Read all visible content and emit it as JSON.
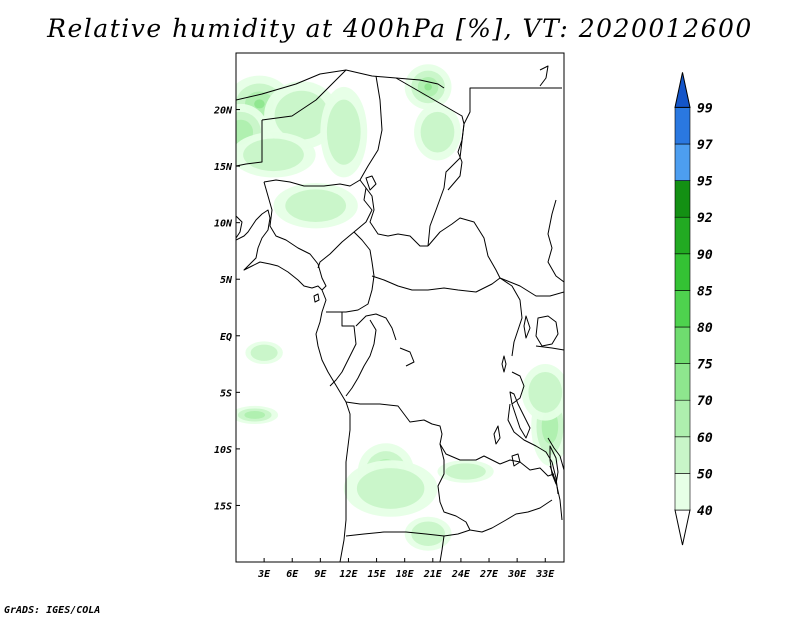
{
  "title": "Relative humidity at 400hPa [%], VT: 2020012600",
  "credit": "GrADS: IGES/COLA",
  "map": {
    "lat_range": [
      -20,
      25
    ],
    "lon_range": [
      0,
      35
    ],
    "lat_ticks": [
      {
        "value": 20,
        "label": "20N"
      },
      {
        "value": 15,
        "label": "15N"
      },
      {
        "value": 10,
        "label": "10N"
      },
      {
        "value": 5,
        "label": "5N"
      },
      {
        "value": 0,
        "label": "EQ"
      },
      {
        "value": -5,
        "label": "5S"
      },
      {
        "value": -10,
        "label": "10S"
      },
      {
        "value": -15,
        "label": "15S"
      }
    ],
    "lon_ticks": [
      {
        "value": 3,
        "label": "3E"
      },
      {
        "value": 6,
        "label": "6E"
      },
      {
        "value": 9,
        "label": "9E"
      },
      {
        "value": 12,
        "label": "12E"
      },
      {
        "value": 15,
        "label": "15E"
      },
      {
        "value": 18,
        "label": "18E"
      },
      {
        "value": 21,
        "label": "21E"
      },
      {
        "value": 24,
        "label": "24E"
      },
      {
        "value": 27,
        "label": "27E"
      },
      {
        "value": 30,
        "label": "30E"
      },
      {
        "value": 33,
        "label": "33E"
      }
    ]
  },
  "colorbar": {
    "levels": [
      "40",
      "50",
      "60",
      "70",
      "75",
      "80",
      "85",
      "90",
      "92",
      "95",
      "97",
      "99"
    ],
    "colors": [
      "#e6ffe6",
      "#c8f5c8",
      "#aeefae",
      "#8ee68e",
      "#6fdc6f",
      "#4ed24e",
      "#34c234",
      "#22aa22",
      "#139013",
      "#4d9ef0",
      "#2a78e0",
      "#1455c8"
    ]
  },
  "humidity_blobs": [
    {
      "lon": 2.5,
      "lat": 20.5,
      "rlon": 3.5,
      "rlat": 2.5,
      "level": 3
    },
    {
      "lon": 0.5,
      "lat": 18.0,
      "rlon": 3.0,
      "rlat": 2.5,
      "level": 2
    },
    {
      "lon": 7.0,
      "lat": 19.5,
      "rlon": 4.0,
      "rlat": 3.0,
      "level": 1
    },
    {
      "lon": 11.5,
      "lat": 18.0,
      "rlon": 2.5,
      "rlat": 4.0,
      "level": 1
    },
    {
      "lon": 4.0,
      "lat": 16.0,
      "rlon": 4.5,
      "rlat": 2.0,
      "level": 1
    },
    {
      "lon": 20.5,
      "lat": 22.0,
      "rlon": 2.5,
      "rlat": 2.0,
      "level": 3
    },
    {
      "lon": 21.5,
      "lat": 18.0,
      "rlon": 2.5,
      "rlat": 2.5,
      "level": 1
    },
    {
      "lon": 8.5,
      "lat": 11.5,
      "rlon": 4.5,
      "rlat": 2.0,
      "level": 1
    },
    {
      "lon": 3.0,
      "lat": -1.5,
      "rlon": 2.0,
      "rlat": 1.0,
      "level": 1
    },
    {
      "lon": 2.0,
      "lat": -7.0,
      "rlon": 2.5,
      "rlat": 0.8,
      "level": 2
    },
    {
      "lon": 16.0,
      "lat": -12.0,
      "rlon": 3.0,
      "rlat": 2.5,
      "level": 3
    },
    {
      "lon": 16.5,
      "lat": -13.5,
      "rlon": 5.0,
      "rlat": 2.5,
      "level": 1
    },
    {
      "lon": 24.5,
      "lat": -12.0,
      "rlon": 3.0,
      "rlat": 1.0,
      "level": 1
    },
    {
      "lon": 33.5,
      "lat": -8.0,
      "rlon": 2.0,
      "rlat": 3.5,
      "level": 2
    },
    {
      "lon": 33.0,
      "lat": -5.0,
      "rlon": 2.5,
      "rlat": 2.5,
      "level": 1
    },
    {
      "lon": 20.5,
      "lat": -17.5,
      "rlon": 2.5,
      "rlat": 1.5,
      "level": 1
    }
  ]
}
